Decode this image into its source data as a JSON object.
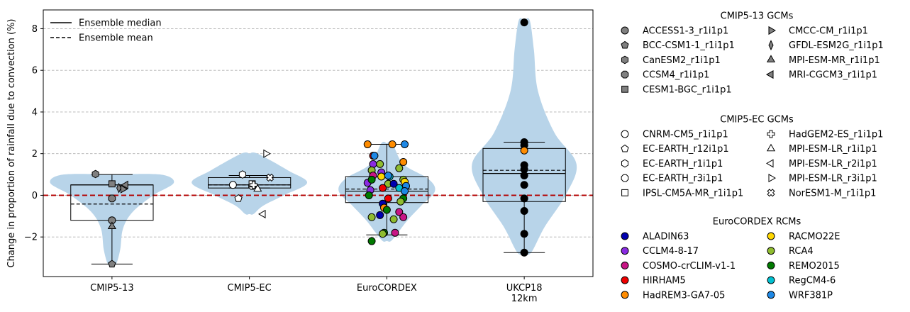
{
  "chart_data": {
    "type": "violin",
    "ylabel": "Change in proportion of rainfall due to convection (%)",
    "ylim": [
      -3.9,
      8.9
    ],
    "yticks": [
      -2,
      0,
      2,
      4,
      6,
      8
    ],
    "ytick_labels": [
      "−2",
      "0",
      "2",
      "4",
      "6",
      "8"
    ],
    "grid": "y-dashed",
    "zero_line": {
      "value": 0,
      "color": "#b40000"
    },
    "violin_color": "#b8d4e9",
    "groups": [
      {
        "label": "CMIP5-13",
        "violin": {
          "y": [
            1.0,
            0.6,
            0.0,
            -0.8,
            -1.6,
            -2.6,
            -3.3
          ],
          "w": [
            0.35,
            0.45,
            0.3,
            0.15,
            0.08,
            0.06,
            0.03
          ]
        },
        "box": {
          "q1": -1.2,
          "q3": 0.5,
          "median": 0.5,
          "mean": -0.42,
          "whisker_low": -3.3,
          "whisker_high": 1.0,
          "box_halfwidth": 0.3,
          "cap_halfwidth": 0.15
        },
        "points": [
          {
            "model": "ACCESS1-3_r1i1p1",
            "x": 0.0,
            "y": -1.2
          },
          {
            "model": "BCC-CSM1-1_r1i1p1",
            "x": 0.0,
            "y": -3.3
          },
          {
            "model": "CanESM2_r1i1p1",
            "x": -0.12,
            "y": 1.02
          },
          {
            "model": "CCSM4_r1i1p1",
            "x": 0.0,
            "y": -0.15
          },
          {
            "model": "CESM1-BGC_r1i1p1",
            "x": 0.0,
            "y": 0.55
          },
          {
            "model": "CMCC-CM_r1i1p1",
            "x": 0.08,
            "y": 0.3
          },
          {
            "model": "GFDL-ESM2G_r1i1p1",
            "x": 0.05,
            "y": 0.35
          },
          {
            "model": "MPI-ESM-MR_r1i1p1",
            "x": 0.0,
            "y": -1.5
          },
          {
            "model": "MRI-CGCM3_r1i1p1",
            "x": 0.1,
            "y": 0.5
          }
        ]
      },
      {
        "label": "CMIP5-EC",
        "violin": {
          "y": [
            2.0,
            1.2,
            0.6,
            0.0,
            -0.5,
            -0.9
          ],
          "w": [
            0.06,
            0.28,
            0.42,
            0.25,
            0.1,
            0.03
          ]
        },
        "box": {
          "q1": 0.35,
          "q3": 0.85,
          "median": 0.5,
          "mean": 0.5,
          "whisker_low": 0.35,
          "whisker_high": 0.95,
          "box_halfwidth": 0.3,
          "cap_halfwidth": 0.15
        },
        "points": [
          {
            "model": "CNRM-CM5_r1i1p1",
            "x": -0.12,
            "y": 0.5
          },
          {
            "model": "EC-EARTH_r12i1p1",
            "x": -0.08,
            "y": -0.15
          },
          {
            "model": "EC-EARTH_r1i1p1",
            "x": -0.05,
            "y": 1.0
          },
          {
            "model": "EC-EARTH_r3i1p1",
            "x": 0.02,
            "y": 0.45
          },
          {
            "model": "IPSL-CM5A-MR_r1i1p1",
            "x": 0.02,
            "y": 0.55
          },
          {
            "model": "HadGEM2-ES_r1i1p1",
            "x": 0.03,
            "y": 0.5
          },
          {
            "model": "MPI-ESM-LR_r1i1p1",
            "x": 0.06,
            "y": 0.3
          },
          {
            "model": "MPI-ESM-LR_r2i1p1",
            "x": 0.1,
            "y": -0.9
          },
          {
            "model": "MPI-ESM-LR_r3i1p1",
            "x": 0.12,
            "y": 2.0
          },
          {
            "model": "NorESM1-M_r1i1p1",
            "x": 0.15,
            "y": 0.85
          }
        ]
      },
      {
        "label": "EuroCORDEX",
        "violin": {
          "y": [
            2.5,
            1.5,
            0.8,
            0.2,
            -0.5,
            -1.2,
            -1.8,
            -2.2
          ],
          "w": [
            0.04,
            0.12,
            0.3,
            0.35,
            0.25,
            0.15,
            0.08,
            0.03
          ]
        },
        "box": {
          "q1": -0.35,
          "q3": 0.9,
          "median": 0.2,
          "mean": 0.3,
          "whisker_low": -1.9,
          "whisker_high": 2.45,
          "box_halfwidth": 0.3,
          "cap_halfwidth": 0.15
        },
        "points": [
          {
            "model": "HadREM3-GA7-05",
            "x": -0.14,
            "y": 2.45
          },
          {
            "model": "HadREM3-GA7-05",
            "x": 0.04,
            "y": 2.45
          },
          {
            "model": "WRF381P",
            "x": 0.13,
            "y": 2.45
          },
          {
            "model": "HIRHAM5",
            "x": -0.1,
            "y": 1.9
          },
          {
            "model": "WRF381P",
            "x": -0.09,
            "y": 1.9
          },
          {
            "model": "HadREM3-GA7-05",
            "x": 0.12,
            "y": 1.6
          },
          {
            "model": "CCLM4-8-17",
            "x": -0.1,
            "y": 1.5
          },
          {
            "model": "RCA4",
            "x": -0.05,
            "y": 1.5
          },
          {
            "model": "RCA4",
            "x": 0.09,
            "y": 1.3
          },
          {
            "model": "RCA4",
            "x": -0.11,
            "y": 1.2
          },
          {
            "model": "CCLM4-8-17",
            "x": -0.04,
            "y": 1.1
          },
          {
            "model": "COSMO-crCLIM-v1-1",
            "x": -0.1,
            "y": 0.95
          },
          {
            "model": "RACMO22E",
            "x": -0.04,
            "y": 0.9
          },
          {
            "model": "RegCM4-6",
            "x": 0.02,
            "y": 0.9
          },
          {
            "model": "WRF381P",
            "x": 0.01,
            "y": 0.95
          },
          {
            "model": "RCA4",
            "x": 0.12,
            "y": 0.75
          },
          {
            "model": "RACMO22E",
            "x": 0.13,
            "y": 0.65
          },
          {
            "model": "CCLM4-8-17",
            "x": -0.14,
            "y": 0.6
          },
          {
            "model": "REMO2015",
            "x": -0.11,
            "y": 0.75
          },
          {
            "model": "RCA4",
            "x": 0.01,
            "y": 0.55
          },
          {
            "model": "ALADIN63",
            "x": 0.05,
            "y": 0.55
          },
          {
            "model": "WRF381P",
            "x": 0.14,
            "y": 0.45
          },
          {
            "model": "CCLM4-8-17",
            "x": -0.12,
            "y": 0.25
          },
          {
            "model": "HIRHAM5",
            "x": -0.03,
            "y": 0.35
          },
          {
            "model": "RegCM4-6",
            "x": 0.09,
            "y": 0.35
          },
          {
            "model": "WRF381P",
            "x": 0.13,
            "y": 0.2
          },
          {
            "model": "REMO2015",
            "x": -0.13,
            "y": 0.0
          },
          {
            "model": "HIRHAM5",
            "x": 0.01,
            "y": -0.15
          },
          {
            "model": "REMO2015",
            "x": 0.12,
            "y": -0.15
          },
          {
            "model": "ALADIN63",
            "x": -0.03,
            "y": -0.4
          },
          {
            "model": "RCA4",
            "x": 0.1,
            "y": -0.3
          },
          {
            "model": "HadREM3-GA7-05",
            "x": -0.02,
            "y": -0.6
          },
          {
            "model": "REMO2015",
            "x": 0.0,
            "y": -0.7
          },
          {
            "model": "COSMO-crCLIM-v1-1",
            "x": 0.09,
            "y": -0.8
          },
          {
            "model": "ALADIN63",
            "x": -0.05,
            "y": -0.95
          },
          {
            "model": "RCA4",
            "x": 0.05,
            "y": -1.15
          },
          {
            "model": "RCA4",
            "x": -0.11,
            "y": -1.05
          },
          {
            "model": "COSMO-crCLIM-v1-1",
            "x": 0.12,
            "y": -1.05
          },
          {
            "model": "REMO2015",
            "x": -0.02,
            "y": -1.8
          },
          {
            "model": "RCA4",
            "x": -0.03,
            "y": -1.85
          },
          {
            "model": "COSMO-crCLIM-v1-1",
            "x": 0.06,
            "y": -1.8
          },
          {
            "model": "REMO2015",
            "x": -0.11,
            "y": -2.2
          }
        ]
      },
      {
        "label": "UKCP18\n12km",
        "violin": {
          "y": [
            8.4,
            7.0,
            5.0,
            3.0,
            1.5,
            0.0,
            -1.5,
            -2.75
          ],
          "w": [
            0.04,
            0.07,
            0.1,
            0.22,
            0.38,
            0.3,
            0.15,
            0.05
          ]
        },
        "box": {
          "q1": -0.3,
          "q3": 2.25,
          "median": 1.05,
          "mean": 1.2,
          "whisker_low": -2.75,
          "whisker_high": 2.55,
          "box_halfwidth": 0.3,
          "cap_halfwidth": 0.15
        },
        "points": [
          {
            "model": "UKCP18",
            "x": 0.0,
            "y": 8.3
          },
          {
            "model": "UKCP18",
            "x": 0.0,
            "y": 2.55
          },
          {
            "model": "UKCP18",
            "x": 0.0,
            "y": 2.4
          },
          {
            "model": "HadREM3-GA7-05",
            "x": 0.0,
            "y": 2.15
          },
          {
            "model": "UKCP18",
            "x": 0.0,
            "y": 1.45
          },
          {
            "model": "UKCP18",
            "x": 0.0,
            "y": 1.25
          },
          {
            "model": "UKCP18",
            "x": 0.0,
            "y": 0.95
          },
          {
            "model": "UKCP18",
            "x": 0.0,
            "y": 0.5
          },
          {
            "model": "UKCP18",
            "x": 0.0,
            "y": -0.15
          },
          {
            "model": "UKCP18",
            "x": 0.0,
            "y": -0.75
          },
          {
            "model": "UKCP18",
            "x": 0.0,
            "y": -1.85
          },
          {
            "model": "UKCP18",
            "x": 0.0,
            "y": -2.75
          }
        ]
      }
    ],
    "line_legend": [
      {
        "label": "Ensemble median",
        "style": "solid"
      },
      {
        "label": "Ensemble mean",
        "style": "dashed"
      }
    ],
    "legends": [
      {
        "title": "CMIP5-13 GCMs",
        "entries": [
          {
            "label": "ACCESS1-3_r1i1p1",
            "marker": "circle",
            "color": "#808080"
          },
          {
            "label": "BCC-CSM1-1_r1i1p1",
            "marker": "pentagon",
            "color": "#808080"
          },
          {
            "label": "CanESM2_r1i1p1",
            "marker": "hexagon",
            "color": "#808080"
          },
          {
            "label": "CCSM4_r1i1p1",
            "marker": "octagon",
            "color": "#808080"
          },
          {
            "label": "CESM1-BGC_r1i1p1",
            "marker": "square",
            "color": "#808080"
          },
          {
            "label": "CMCC-CM_r1i1p1",
            "marker": "tri-right",
            "color": "#808080"
          },
          {
            "label": "GFDL-ESM2G_r1i1p1",
            "marker": "thin-diamond",
            "color": "#808080"
          },
          {
            "label": "MPI-ESM-MR_r1i1p1",
            "marker": "tri-up",
            "color": "#808080"
          },
          {
            "label": "MRI-CGCM3_r1i1p1",
            "marker": "tri-left",
            "color": "#808080"
          }
        ]
      },
      {
        "title": "CMIP5-EC GCMs",
        "entries": [
          {
            "label": "CNRM-CM5_r1i1p1",
            "marker": "circle",
            "color": "#ffffff"
          },
          {
            "label": "EC-EARTH_r12i1p1",
            "marker": "pentagon",
            "color": "#ffffff"
          },
          {
            "label": "EC-EARTH_r1i1p1",
            "marker": "hexagon",
            "color": "#ffffff"
          },
          {
            "label": "EC-EARTH_r3i1p1",
            "marker": "octagon",
            "color": "#ffffff"
          },
          {
            "label": "IPSL-CM5A-MR_r1i1p1",
            "marker": "square",
            "color": "#ffffff"
          },
          {
            "label": "HadGEM2-ES_r1i1p1",
            "marker": "plus",
            "color": "#ffffff"
          },
          {
            "label": "MPI-ESM-LR_r1i1p1",
            "marker": "tri-up",
            "color": "#ffffff"
          },
          {
            "label": "MPI-ESM-LR_r2i1p1",
            "marker": "tri-left",
            "color": "#ffffff"
          },
          {
            "label": "MPI-ESM-LR_r3i1p1",
            "marker": "tri-right",
            "color": "#ffffff"
          },
          {
            "label": "NorESM1-M_r1i1p1",
            "marker": "x",
            "color": "#ffffff"
          }
        ]
      },
      {
        "title": "EuroCORDEX RCMs",
        "entries": [
          {
            "label": "ALADIN63",
            "marker": "circle",
            "color": "#0000b0"
          },
          {
            "label": "CCLM4-8-17",
            "marker": "circle",
            "color": "#8a2be2"
          },
          {
            "label": "COSMO-crCLIM-v1-1",
            "marker": "circle",
            "color": "#c71585"
          },
          {
            "label": "HIRHAM5",
            "marker": "circle",
            "color": "#ee0000"
          },
          {
            "label": "HadREM3-GA7-05",
            "marker": "circle",
            "color": "#ff8c00"
          },
          {
            "label": "RACMO22E",
            "marker": "circle",
            "color": "#ffd700"
          },
          {
            "label": "RCA4",
            "marker": "circle",
            "color": "#8fbc2f"
          },
          {
            "label": "REMO2015",
            "marker": "circle",
            "color": "#007a00"
          },
          {
            "label": "RegCM4-6",
            "marker": "circle",
            "color": "#00c0d0"
          },
          {
            "label": "WRF381P",
            "marker": "circle",
            "color": "#1e88e5"
          }
        ]
      }
    ]
  },
  "marker_map": {
    "CMIP5-13": {
      "ACCESS1-3_r1i1p1": "circle",
      "BCC-CSM1-1_r1i1p1": "pentagon",
      "CanESM2_r1i1p1": "hexagon",
      "CCSM4_r1i1p1": "octagon",
      "CESM1-BGC_r1i1p1": "square",
      "CMCC-CM_r1i1p1": "tri-right",
      "GFDL-ESM2G_r1i1p1": "thin-diamond",
      "MPI-ESM-MR_r1i1p1": "tri-up",
      "MRI-CGCM3_r1i1p1": "tri-left"
    },
    "CMIP5-EC": {
      "CNRM-CM5_r1i1p1": "circle",
      "EC-EARTH_r12i1p1": "pentagon",
      "EC-EARTH_r1i1p1": "hexagon",
      "EC-EARTH_r3i1p1": "octagon",
      "IPSL-CM5A-MR_r1i1p1": "square",
      "HadGEM2-ES_r1i1p1": "plus",
      "MPI-ESM-LR_r1i1p1": "tri-up",
      "MPI-ESM-LR_r2i1p1": "tri-left",
      "MPI-ESM-LR_r3i1p1": "tri-right",
      "NorESM1-M_r1i1p1": "x"
    },
    "EuroCORDEX_colors": {
      "ALADIN63": "#0000b0",
      "CCLM4-8-17": "#8a2be2",
      "COSMO-crCLIM-v1-1": "#c71585",
      "HIRHAM5": "#ee0000",
      "HadREM3-GA7-05": "#ff8c00",
      "RACMO22E": "#ffd700",
      "RCA4": "#8fbc2f",
      "REMO2015": "#007a00",
      "RegCM4-6": "#00c0d0",
      "WRF381P": "#1e88e5"
    },
    "CMIP5-13_color": "#808080",
    "CMIP5-EC_color": "#ffffff",
    "UKCP18_color": "#000000"
  }
}
